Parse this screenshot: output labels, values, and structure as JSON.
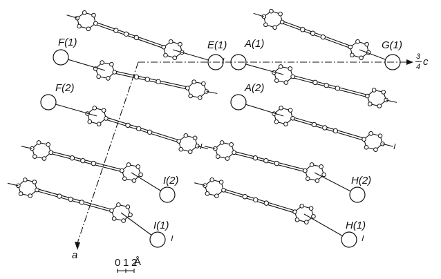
{
  "atom_labels": [
    "F(1)",
    "E(1)",
    "A(1)",
    "G(1)",
    "F(2)",
    "A(2)",
    "I(2)",
    "H(2)",
    "I(1)",
    "H(1)"
  ],
  "axes": {
    "a": "a",
    "c": {
      "numerator": "3",
      "denominator": "4",
      "label": "c"
    }
  },
  "scale": {
    "ticks": [
      0,
      1,
      2
    ],
    "unit": "Å"
  }
}
